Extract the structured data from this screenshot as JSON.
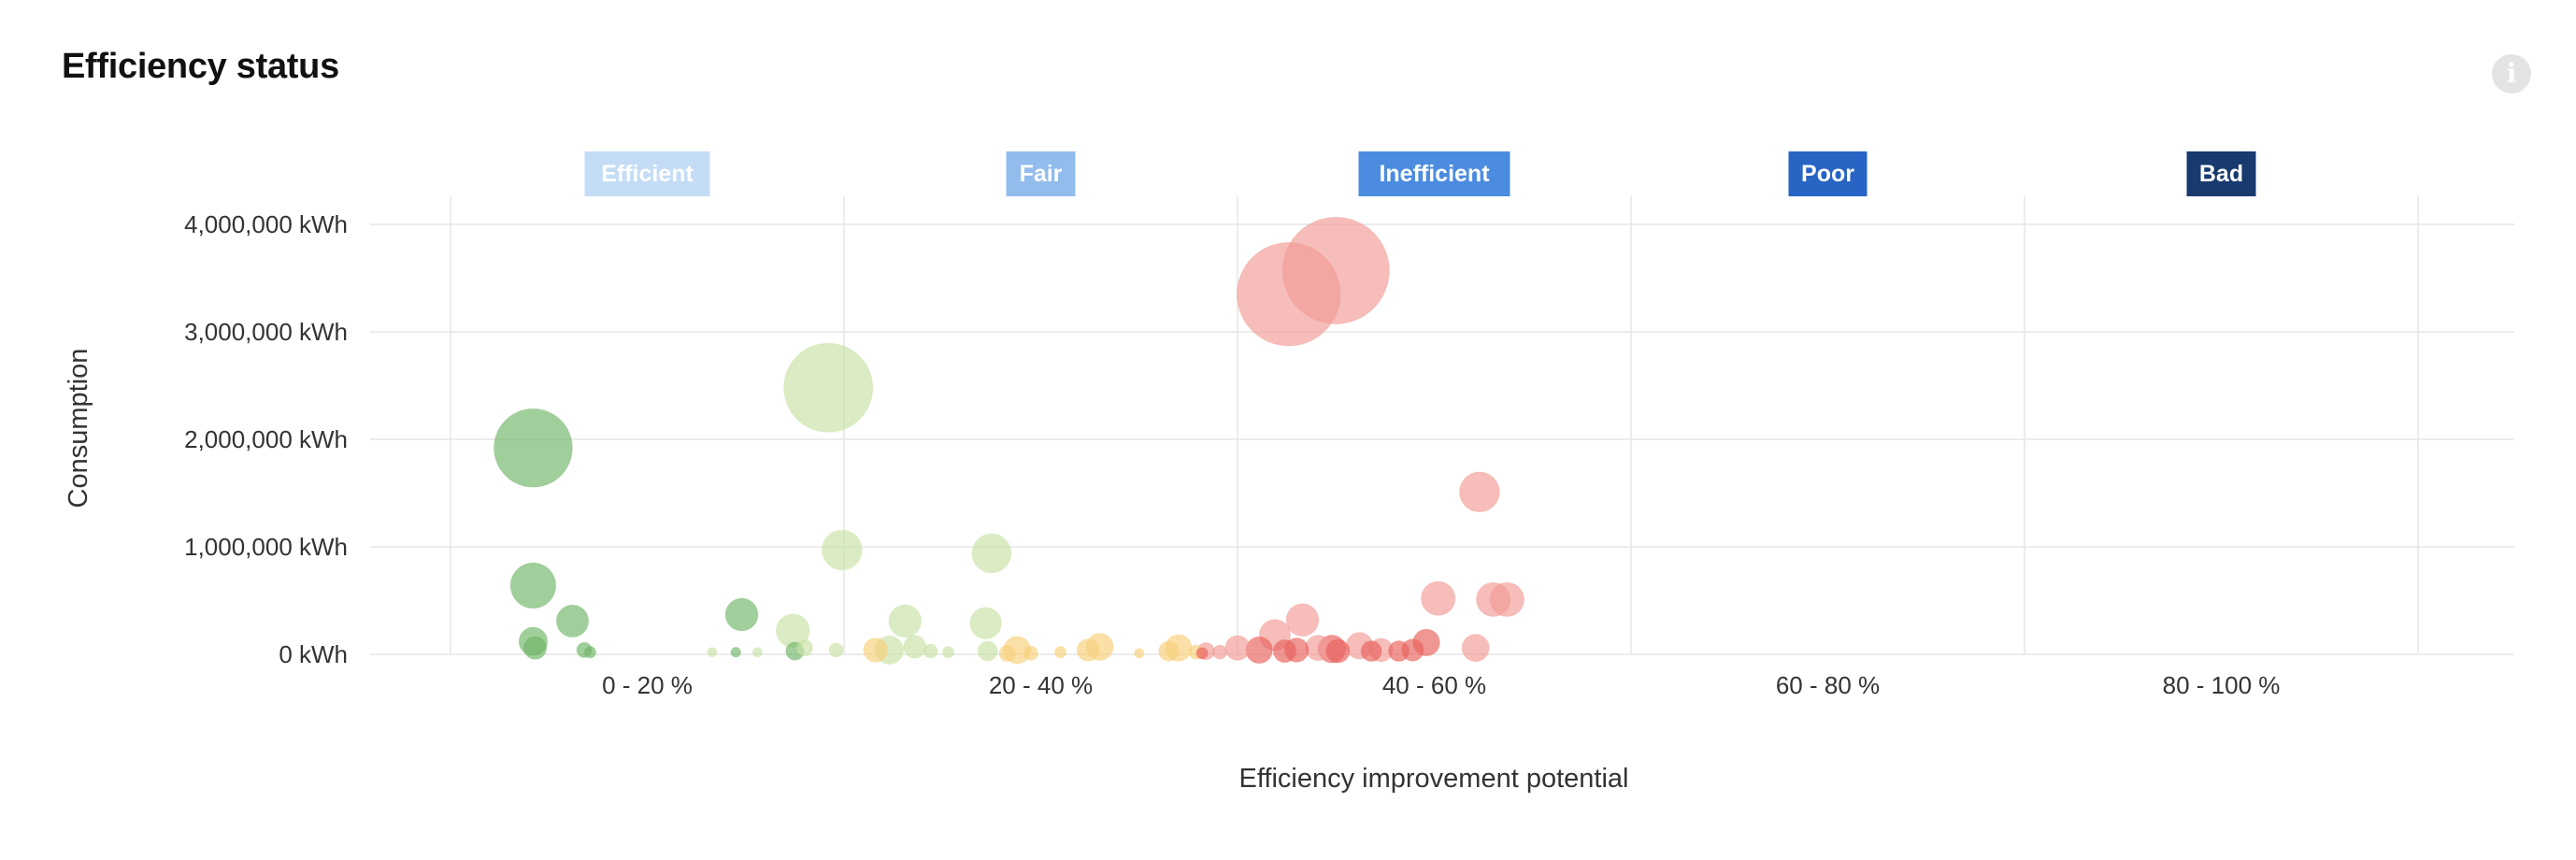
{
  "title": "Efficiency status",
  "info_icon": "info-icon",
  "chart_data": {
    "type": "scatter",
    "title": "Efficiency status",
    "xlabel": "Efficiency improvement potential",
    "ylabel": "Consumption",
    "xlim": [
      0,
      100
    ],
    "ylim": [
      0,
      4000000
    ],
    "grid": true,
    "categories": [
      "0 - 20 %",
      "20 - 40 %",
      "40 - 60 %",
      "60 - 80 %",
      "80 - 100 %"
    ],
    "y_ticks": [
      {
        "value": 0,
        "label": "0 kWh"
      },
      {
        "value": 1000000,
        "label": "1,000,000 kWh"
      },
      {
        "value": 2000000,
        "label": "2,000,000 kWh"
      },
      {
        "value": 3000000,
        "label": "3,000,000 kWh"
      },
      {
        "value": 4000000,
        "label": "4,000,000 kWh"
      }
    ],
    "status_bands": [
      {
        "label": "Efficient",
        "color": "#c4dcf5"
      },
      {
        "label": "Fair",
        "color": "#91bcec"
      },
      {
        "label": "Inefficient",
        "color": "#4b8ce0"
      },
      {
        "label": "Poor",
        "color": "#2764c4"
      },
      {
        "label": "Bad",
        "color": "#183a6e"
      }
    ],
    "series_colors": {
      "dark-green": "#6fb565",
      "light-green": "#c8e2a4",
      "yellow": "#f8cf78",
      "salmon": "#f19a95",
      "red": "#e8605a"
    },
    "points": [
      {
        "x": 4.2,
        "y": 1920000,
        "size": 1920000,
        "series": "dark-green"
      },
      {
        "x": 4.2,
        "y": 640000,
        "size": 640000,
        "series": "dark-green"
      },
      {
        "x": 4.2,
        "y": 120000,
        "size": 250000,
        "series": "dark-green"
      },
      {
        "x": 4.3,
        "y": 60000,
        "size": 160000,
        "series": "dark-green"
      },
      {
        "x": 6.2,
        "y": 310000,
        "size": 320000,
        "series": "dark-green"
      },
      {
        "x": 6.8,
        "y": 40000,
        "size": 70000,
        "series": "dark-green"
      },
      {
        "x": 7.1,
        "y": 20000,
        "size": 40000,
        "series": "dark-green"
      },
      {
        "x": 14.8,
        "y": 370000,
        "size": 330000,
        "series": "dark-green"
      },
      {
        "x": 14.5,
        "y": 20000,
        "size": 30000,
        "series": "dark-green"
      },
      {
        "x": 17.5,
        "y": 30000,
        "size": 100000,
        "series": "dark-green"
      },
      {
        "x": 19.2,
        "y": 2480000,
        "size": 2480000,
        "series": "light-green"
      },
      {
        "x": 19.9,
        "y": 970000,
        "size": 500000,
        "series": "light-green"
      },
      {
        "x": 17.4,
        "y": 220000,
        "size": 350000,
        "series": "light-green"
      },
      {
        "x": 18.0,
        "y": 60000,
        "size": 80000,
        "series": "light-green"
      },
      {
        "x": 13.3,
        "y": 20000,
        "size": 20000,
        "series": "light-green"
      },
      {
        "x": 15.6,
        "y": 20000,
        "size": 20000,
        "series": "light-green"
      },
      {
        "x": 19.6,
        "y": 40000,
        "size": 60000,
        "series": "light-green"
      },
      {
        "x": 22.3,
        "y": 40000,
        "size": 250000,
        "series": "light-green"
      },
      {
        "x": 23.1,
        "y": 310000,
        "size": 330000,
        "series": "light-green"
      },
      {
        "x": 23.6,
        "y": 70000,
        "size": 160000,
        "series": "light-green"
      },
      {
        "x": 24.4,
        "y": 30000,
        "size": 60000,
        "series": "light-green"
      },
      {
        "x": 25.3,
        "y": 20000,
        "size": 40000,
        "series": "light-green"
      },
      {
        "x": 27.2,
        "y": 290000,
        "size": 310000,
        "series": "light-green"
      },
      {
        "x": 27.3,
        "y": 30000,
        "size": 120000,
        "series": "light-green"
      },
      {
        "x": 27.5,
        "y": 940000,
        "size": 480000,
        "series": "light-green"
      },
      {
        "x": 21.6,
        "y": 40000,
        "size": 180000,
        "series": "yellow"
      },
      {
        "x": 28.3,
        "y": 10000,
        "size": 80000,
        "series": "yellow"
      },
      {
        "x": 28.8,
        "y": 40000,
        "size": 230000,
        "series": "yellow"
      },
      {
        "x": 29.5,
        "y": 10000,
        "size": 60000,
        "series": "yellow"
      },
      {
        "x": 31.0,
        "y": 20000,
        "size": 40000,
        "series": "yellow"
      },
      {
        "x": 32.4,
        "y": 40000,
        "size": 150000,
        "series": "yellow"
      },
      {
        "x": 33.0,
        "y": 70000,
        "size": 230000,
        "series": "yellow"
      },
      {
        "x": 35.0,
        "y": 10000,
        "size": 25000,
        "series": "yellow"
      },
      {
        "x": 36.5,
        "y": 30000,
        "size": 120000,
        "series": "yellow"
      },
      {
        "x": 37.0,
        "y": 60000,
        "size": 220000,
        "series": "yellow"
      },
      {
        "x": 37.9,
        "y": 20000,
        "size": 60000,
        "series": "yellow"
      },
      {
        "x": 38.4,
        "y": 30000,
        "size": 90000,
        "series": "salmon"
      },
      {
        "x": 39.1,
        "y": 20000,
        "size": 60000,
        "series": "salmon"
      },
      {
        "x": 40.0,
        "y": 60000,
        "size": 190000,
        "series": "salmon"
      },
      {
        "x": 41.9,
        "y": 180000,
        "size": 300000,
        "series": "salmon"
      },
      {
        "x": 42.6,
        "y": 3350000,
        "size": 3350000,
        "series": "salmon"
      },
      {
        "x": 43.3,
        "y": 320000,
        "size": 330000,
        "series": "salmon"
      },
      {
        "x": 44.1,
        "y": 60000,
        "size": 200000,
        "series": "salmon"
      },
      {
        "x": 45.0,
        "y": 3570000,
        "size": 3570000,
        "series": "salmon"
      },
      {
        "x": 46.2,
        "y": 80000,
        "size": 220000,
        "series": "salmon"
      },
      {
        "x": 47.3,
        "y": 40000,
        "size": 170000,
        "series": "salmon"
      },
      {
        "x": 50.2,
        "y": 520000,
        "size": 360000,
        "series": "salmon"
      },
      {
        "x": 52.1,
        "y": 60000,
        "size": 230000,
        "series": "salmon"
      },
      {
        "x": 52.3,
        "y": 1510000,
        "size": 500000,
        "series": "salmon"
      },
      {
        "x": 53.0,
        "y": 510000,
        "size": 360000,
        "series": "salmon"
      },
      {
        "x": 53.7,
        "y": 510000,
        "size": 360000,
        "series": "salmon"
      },
      {
        "x": 41.1,
        "y": 40000,
        "size": 220000,
        "series": "red"
      },
      {
        "x": 42.4,
        "y": 30000,
        "size": 160000,
        "series": "red"
      },
      {
        "x": 43.0,
        "y": 40000,
        "size": 180000,
        "series": "red"
      },
      {
        "x": 44.8,
        "y": 50000,
        "size": 240000,
        "series": "red"
      },
      {
        "x": 45.1,
        "y": 30000,
        "size": 170000,
        "series": "red"
      },
      {
        "x": 46.8,
        "y": 30000,
        "size": 130000,
        "series": "red"
      },
      {
        "x": 48.2,
        "y": 30000,
        "size": 130000,
        "series": "red"
      },
      {
        "x": 48.9,
        "y": 40000,
        "size": 150000,
        "series": "red"
      },
      {
        "x": 49.6,
        "y": 110000,
        "size": 220000,
        "series": "red"
      },
      {
        "x": 38.2,
        "y": 10000,
        "size": 40000,
        "series": "red"
      }
    ]
  }
}
